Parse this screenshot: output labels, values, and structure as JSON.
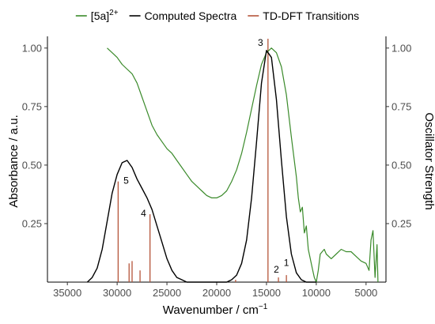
{
  "chart_data": {
    "type": "line",
    "legend": {
      "position": "top",
      "entries": [
        {
          "label": "[5a]",
          "superscript": "2+",
          "color": "#3a8a2a"
        },
        {
          "label": "Computed Spectra",
          "color": "#000000"
        },
        {
          "label": "TD-DFT Transitions",
          "color": "#b5553a"
        }
      ]
    },
    "xlabel": "Wavenumber / cm",
    "xlabel_sup": "−1",
    "ylabel": "Absorbance / a.u.",
    "ylabel_right": "Oscillator Strength",
    "x_reversed": true,
    "xlim": [
      37000,
      3000
    ],
    "ylim": [
      0,
      1.05
    ],
    "x_ticks": [
      35000,
      30000,
      25000,
      20000,
      15000,
      10000,
      5000
    ],
    "x_tick_labels": [
      "35000",
      "30000",
      "25000",
      "20000",
      "15000",
      "10000",
      "5000"
    ],
    "y_ticks": [
      0.25,
      0.5,
      0.75,
      1.0
    ],
    "y_tick_labels": [
      "0.25",
      "0.50",
      "0.75",
      "1.00"
    ],
    "y_right_ticks": [
      0.25,
      0.5,
      0.75,
      1.0
    ],
    "y_right_tick_labels": [
      "0.25",
      "0.50",
      "0.75",
      "1.00"
    ],
    "grid": false,
    "series": [
      {
        "name": "[5a]2+",
        "color": "#3a8a2a",
        "x": [
          31000,
          30500,
          30000,
          29500,
          29000,
          28500,
          28000,
          27500,
          27000,
          26500,
          26000,
          25500,
          25000,
          24500,
          24000,
          23500,
          23000,
          22500,
          22000,
          21500,
          21000,
          20500,
          20000,
          19500,
          19000,
          18500,
          18000,
          17500,
          17000,
          16500,
          16000,
          15500,
          15000,
          14500,
          14000,
          13500,
          13000,
          12500,
          12000,
          11800,
          11600,
          11400,
          11200,
          11000,
          10800,
          10600,
          10400,
          10200,
          10000,
          9800,
          9600,
          9400,
          9200,
          9000,
          8500,
          8000,
          7500,
          7000,
          6500,
          6000,
          5500,
          5000,
          4700,
          4500,
          4300,
          4100,
          3900,
          3800
        ],
        "y": [
          1.0,
          0.98,
          0.96,
          0.93,
          0.91,
          0.89,
          0.85,
          0.79,
          0.73,
          0.67,
          0.63,
          0.6,
          0.57,
          0.55,
          0.52,
          0.49,
          0.46,
          0.43,
          0.41,
          0.39,
          0.37,
          0.36,
          0.36,
          0.37,
          0.39,
          0.43,
          0.48,
          0.55,
          0.64,
          0.74,
          0.84,
          0.93,
          0.98,
          1.0,
          0.98,
          0.92,
          0.8,
          0.62,
          0.45,
          0.36,
          0.3,
          0.32,
          0.21,
          0.24,
          0.14,
          0.1,
          0.06,
          0.02,
          0.0,
          0.05,
          0.12,
          0.13,
          0.14,
          0.12,
          0.1,
          0.12,
          0.14,
          0.13,
          0.13,
          0.11,
          0.09,
          0.08,
          0.05,
          0.18,
          0.22,
          0.02,
          0.16,
          0.0
        ]
      },
      {
        "name": "Computed Spectra",
        "color": "#000000",
        "x": [
          33000,
          32500,
          32000,
          31500,
          31000,
          30500,
          30000,
          29500,
          29000,
          28500,
          28000,
          27500,
          27000,
          26500,
          26000,
          25500,
          25000,
          24500,
          24000,
          23500,
          23000,
          22000,
          21000,
          20000,
          19000,
          18500,
          18000,
          17500,
          17000,
          16500,
          16000,
          15500,
          15000,
          14500,
          14000,
          13500,
          13000,
          12500,
          12000,
          11500,
          11000,
          10500,
          10000
        ],
        "y": [
          0.0,
          0.02,
          0.06,
          0.14,
          0.26,
          0.38,
          0.46,
          0.51,
          0.52,
          0.49,
          0.44,
          0.4,
          0.36,
          0.31,
          0.24,
          0.17,
          0.1,
          0.05,
          0.02,
          0.01,
          0.0,
          0.0,
          0.0,
          0.0,
          0.0,
          0.01,
          0.03,
          0.08,
          0.18,
          0.36,
          0.6,
          0.85,
          0.99,
          0.96,
          0.78,
          0.52,
          0.28,
          0.12,
          0.04,
          0.01,
          0.0,
          0.0,
          0.0
        ]
      }
    ],
    "transitions": {
      "name": "TD-DFT Transitions",
      "color": "#b5553a",
      "x": [
        29900,
        28800,
        28500,
        27700,
        26700,
        18100,
        14850,
        13800,
        13000
      ],
      "y": [
        0.43,
        0.08,
        0.09,
        0.05,
        0.29,
        0.01,
        1.04,
        0.02,
        0.03
      ]
    },
    "annotations": [
      {
        "text": "5",
        "x": 29100,
        "y": 0.42
      },
      {
        "text": "4",
        "x": 27350,
        "y": 0.28
      },
      {
        "text": "3",
        "x": 15600,
        "y": 1.01
      },
      {
        "text": "2",
        "x": 14000,
        "y": 0.04
      },
      {
        "text": "1",
        "x": 13000,
        "y": 0.07
      }
    ]
  }
}
